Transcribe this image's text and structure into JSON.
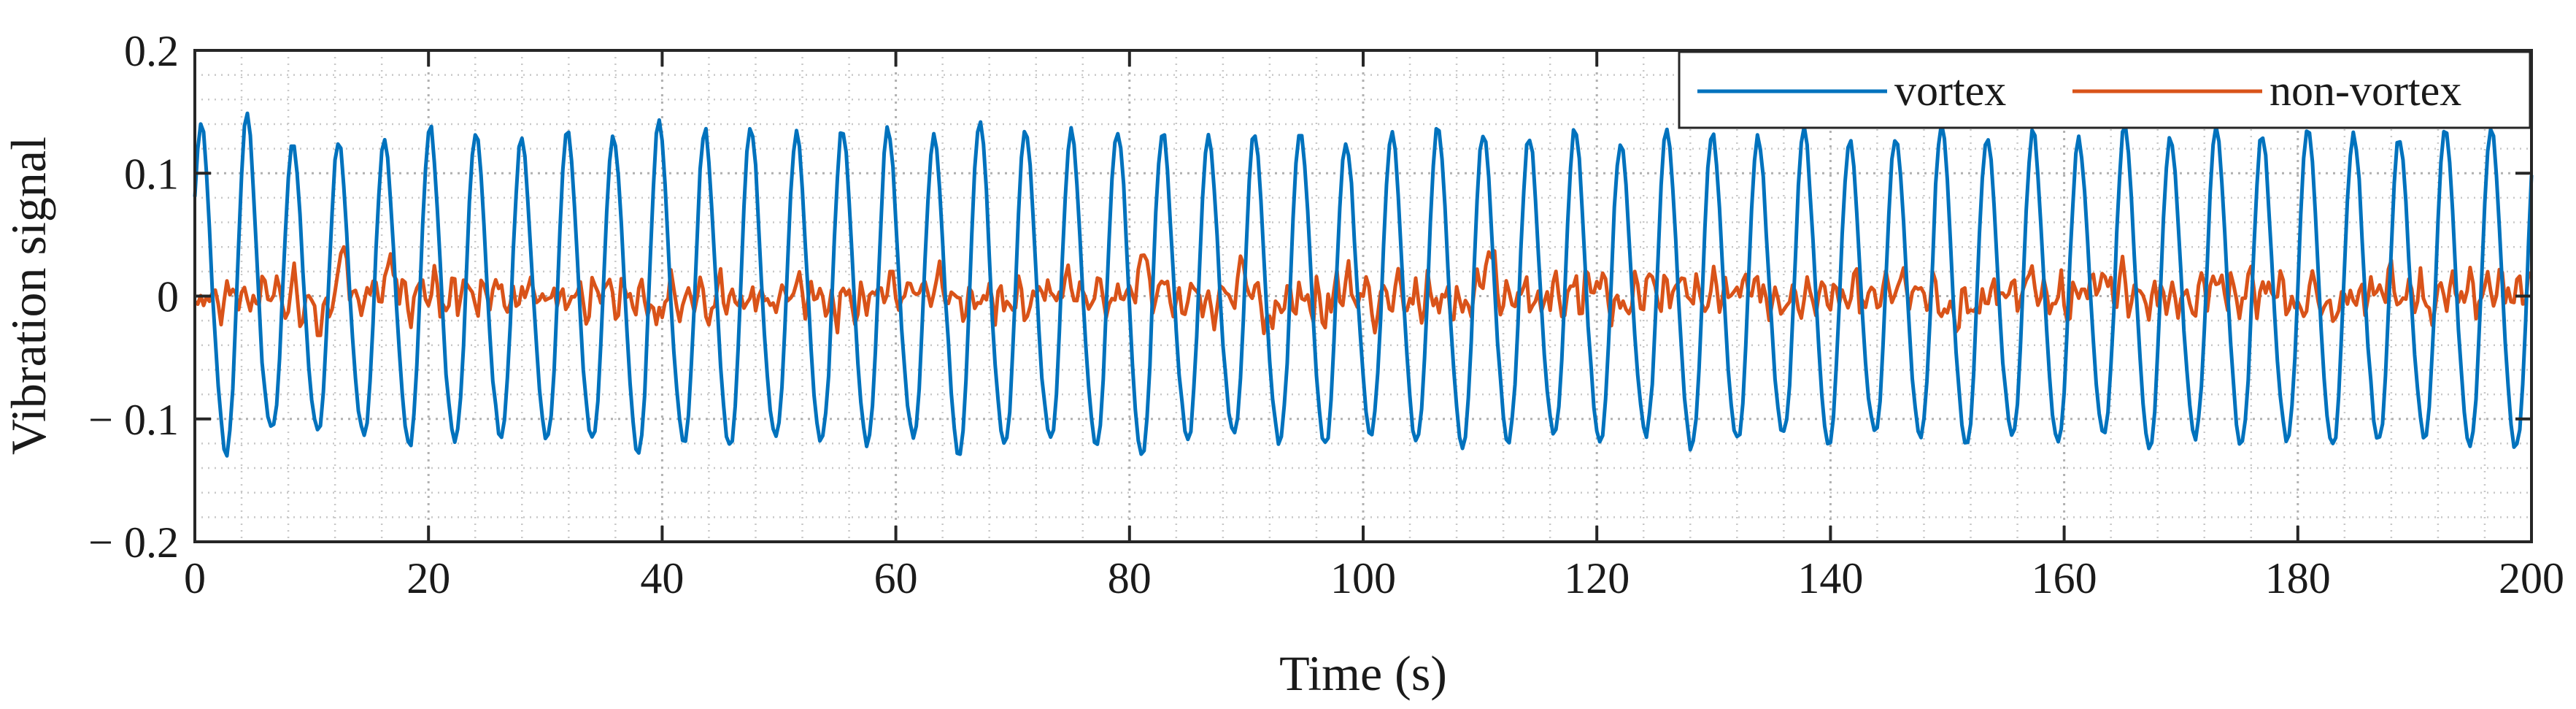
{
  "chart_data": {
    "type": "line",
    "title": "",
    "xlabel": "Time (s)",
    "ylabel": "Vibration signal",
    "xlim": [
      0,
      200
    ],
    "ylim": [
      -0.2,
      0.2
    ],
    "grid": true,
    "minor_grid": true,
    "legend_position": "top-right",
    "x_ticks": [
      0,
      20,
      40,
      60,
      80,
      100,
      120,
      140,
      160,
      180,
      200
    ],
    "x_tick_labels": [
      "0",
      "20",
      "40",
      "60",
      "80",
      "100",
      "120",
      "140",
      "160",
      "180",
      "200"
    ],
    "y_ticks": [
      -0.2,
      -0.1,
      0,
      0.1,
      0.2
    ],
    "y_tick_labels": [
      "− 0.2",
      "− 0.1",
      "0",
      "0.1",
      "0.2"
    ],
    "series": [
      {
        "name": "vortex",
        "color": "#0072BD",
        "description": "quasi-periodic oscillation, about 51 cycles over 200 s",
        "sample_step": 0.25,
        "period": 3.92,
        "amplitude_range": [
          0.11,
          0.14
        ],
        "peaks": [
          {
            "t": 0.6,
            "v": 0.13
          },
          {
            "t": 4.0,
            "v": 0.137
          },
          {
            "t": 7.9,
            "v": 0.117
          },
          {
            "t": 11.8,
            "v": 0.118
          },
          {
            "t": 15.7,
            "v": 0.12
          },
          {
            "t": 19.6,
            "v": 0.128
          },
          {
            "t": 23.5,
            "v": 0.125
          },
          {
            "t": 27.4,
            "v": 0.12
          },
          {
            "t": 31.3,
            "v": 0.125
          },
          {
            "t": 35.2,
            "v": 0.123
          },
          {
            "t": 39.1,
            "v": 0.135
          },
          {
            "t": 43.1,
            "v": 0.125
          },
          {
            "t": 47.0,
            "v": 0.13
          },
          {
            "t": 50.9,
            "v": 0.122
          },
          {
            "t": 54.8,
            "v": 0.126
          },
          {
            "t": 58.7,
            "v": 0.128
          },
          {
            "t": 62.6,
            "v": 0.12
          },
          {
            "t": 66.5,
            "v": 0.135
          },
          {
            "t": 70.4,
            "v": 0.128
          },
          {
            "t": 74.3,
            "v": 0.124
          },
          {
            "t": 78.2,
            "v": 0.127
          },
          {
            "t": 80.5,
            "v": 0.14
          },
          {
            "t": 84.1,
            "v": 0.123
          },
          {
            "t": 88.0,
            "v": 0.12
          },
          {
            "t": 92.0,
            "v": 0.125
          },
          {
            "t": 95.9,
            "v": 0.128
          },
          {
            "t": 99.8,
            "v": 0.118
          },
          {
            "t": 103.7,
            "v": 0.126
          },
          {
            "t": 107.6,
            "v": 0.13
          },
          {
            "t": 111.5,
            "v": 0.124
          },
          {
            "t": 115.4,
            "v": 0.12
          },
          {
            "t": 119.3,
            "v": 0.128
          },
          {
            "t": 123.2,
            "v": 0.118
          },
          {
            "t": 127.1,
            "v": 0.13
          },
          {
            "t": 131.0,
            "v": 0.124
          },
          {
            "t": 134.9,
            "v": 0.12
          },
          {
            "t": 138.9,
            "v": 0.126
          },
          {
            "t": 142.8,
            "v": 0.118
          },
          {
            "t": 146.7,
            "v": 0.122
          },
          {
            "t": 150.6,
            "v": 0.13
          },
          {
            "t": 154.5,
            "v": 0.12
          },
          {
            "t": 158.4,
            "v": 0.125
          },
          {
            "t": 162.3,
            "v": 0.118
          },
          {
            "t": 166.2,
            "v": 0.128
          },
          {
            "t": 170.1,
            "v": 0.12
          },
          {
            "t": 174.0,
            "v": 0.126
          },
          {
            "t": 177.9,
            "v": 0.122
          },
          {
            "t": 181.8,
            "v": 0.13
          },
          {
            "t": 185.7,
            "v": 0.124
          },
          {
            "t": 189.7,
            "v": 0.12
          },
          {
            "t": 193.6,
            "v": 0.126
          },
          {
            "t": 197.5,
            "v": 0.13
          }
        ]
      },
      {
        "name": "non-vortex",
        "color": "#D95319",
        "description": "broadband low-amplitude noise around zero",
        "sample_step": 0.25,
        "amplitude_range": [
          -0.032,
          0.04
        ],
        "notable_peaks": [
          {
            "t": 12.8,
            "v": 0.032
          },
          {
            "t": 16.6,
            "v": 0.03
          },
          {
            "t": 59.3,
            "v": 0.035
          },
          {
            "t": 81.2,
            "v": 0.032
          },
          {
            "t": 89.7,
            "v": 0.04
          },
          {
            "t": 110.9,
            "v": 0.035
          },
          {
            "t": 119.6,
            "v": 0.035
          }
        ],
        "notable_troughs": [
          {
            "t": 11.0,
            "v": -0.028
          },
          {
            "t": 39.6,
            "v": -0.032
          },
          {
            "t": 91.8,
            "v": -0.03
          },
          {
            "t": 101.1,
            "v": -0.025
          }
        ]
      }
    ]
  }
}
